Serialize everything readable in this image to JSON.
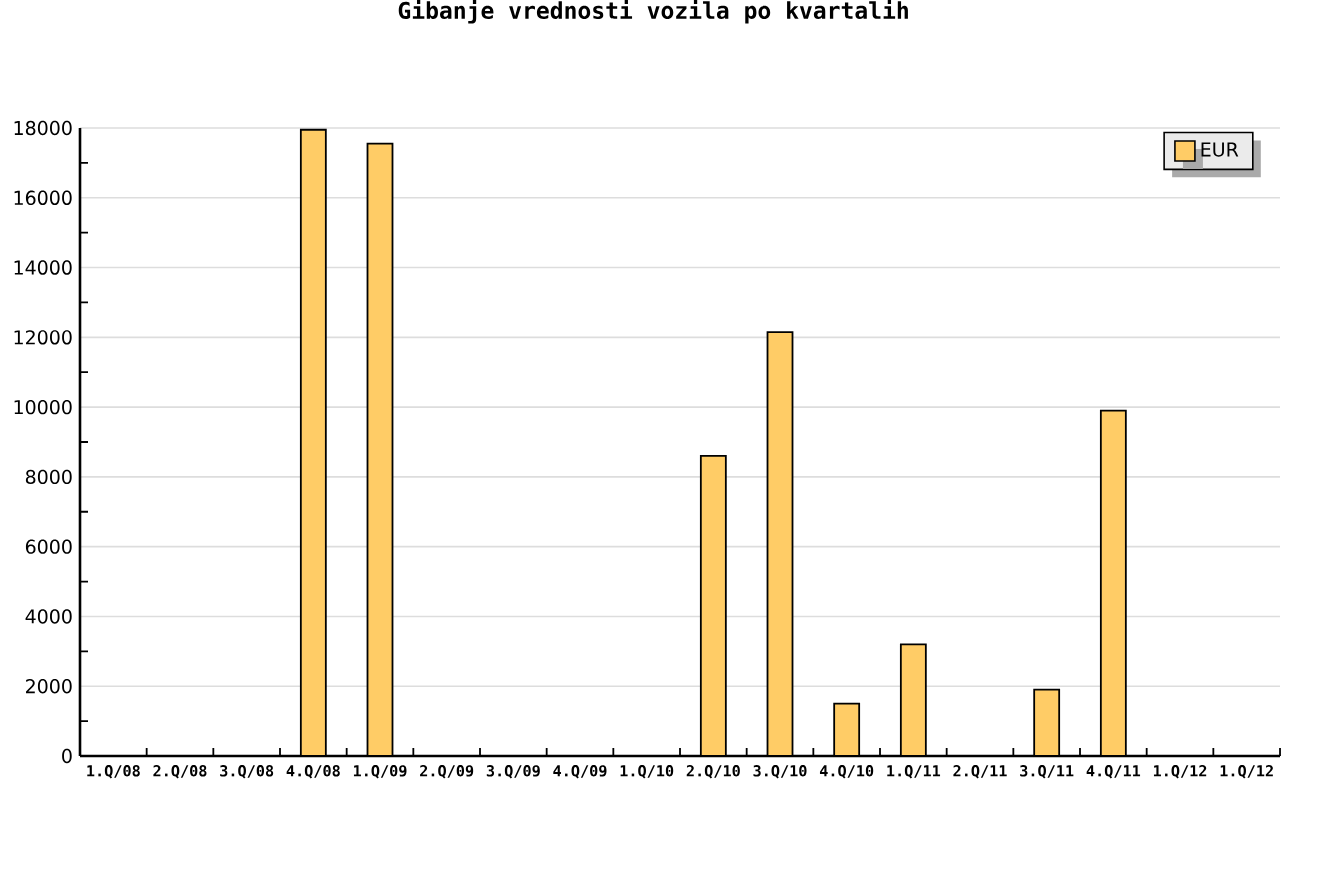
{
  "chart_data": {
    "type": "bar",
    "title": "Gibanje vrednosti vozila po kvartalih",
    "categories": [
      "1.Q/08",
      "2.Q/08",
      "3.Q/08",
      "4.Q/08",
      "1.Q/09",
      "2.Q/09",
      "3.Q/09",
      "4.Q/09",
      "1.Q/10",
      "2.Q/10",
      "3.Q/10",
      "4.Q/10",
      "1.Q/11",
      "2.Q/11",
      "3.Q/11",
      "4.Q/11",
      "1.Q/12",
      "1.Q/12"
    ],
    "series": [
      {
        "name": "EUR",
        "color": "#ffcc66",
        "values": [
          null,
          null,
          null,
          17950,
          17550,
          null,
          null,
          null,
          null,
          8600,
          12150,
          1500,
          3200,
          null,
          1900,
          9900,
          null,
          null
        ]
      }
    ],
    "ylim": [
      0,
      18000
    ],
    "yticks": [
      0,
      {
        "value": 1000,
        "label": null
      },
      2000,
      {
        "value": 3000,
        "label": null
      },
      4000,
      {
        "value": 5000,
        "label": null
      },
      6000,
      {
        "value": 7000,
        "label": null
      },
      8000,
      {
        "value": 9000,
        "label": null
      },
      10000,
      {
        "value": 11000,
        "label": null
      },
      12000,
      {
        "value": 13000,
        "label": null
      },
      14000,
      {
        "value": 15000,
        "label": null
      },
      16000,
      {
        "value": 17000,
        "label": null
      },
      18000
    ],
    "grid": "y",
    "legend": "top right"
  }
}
